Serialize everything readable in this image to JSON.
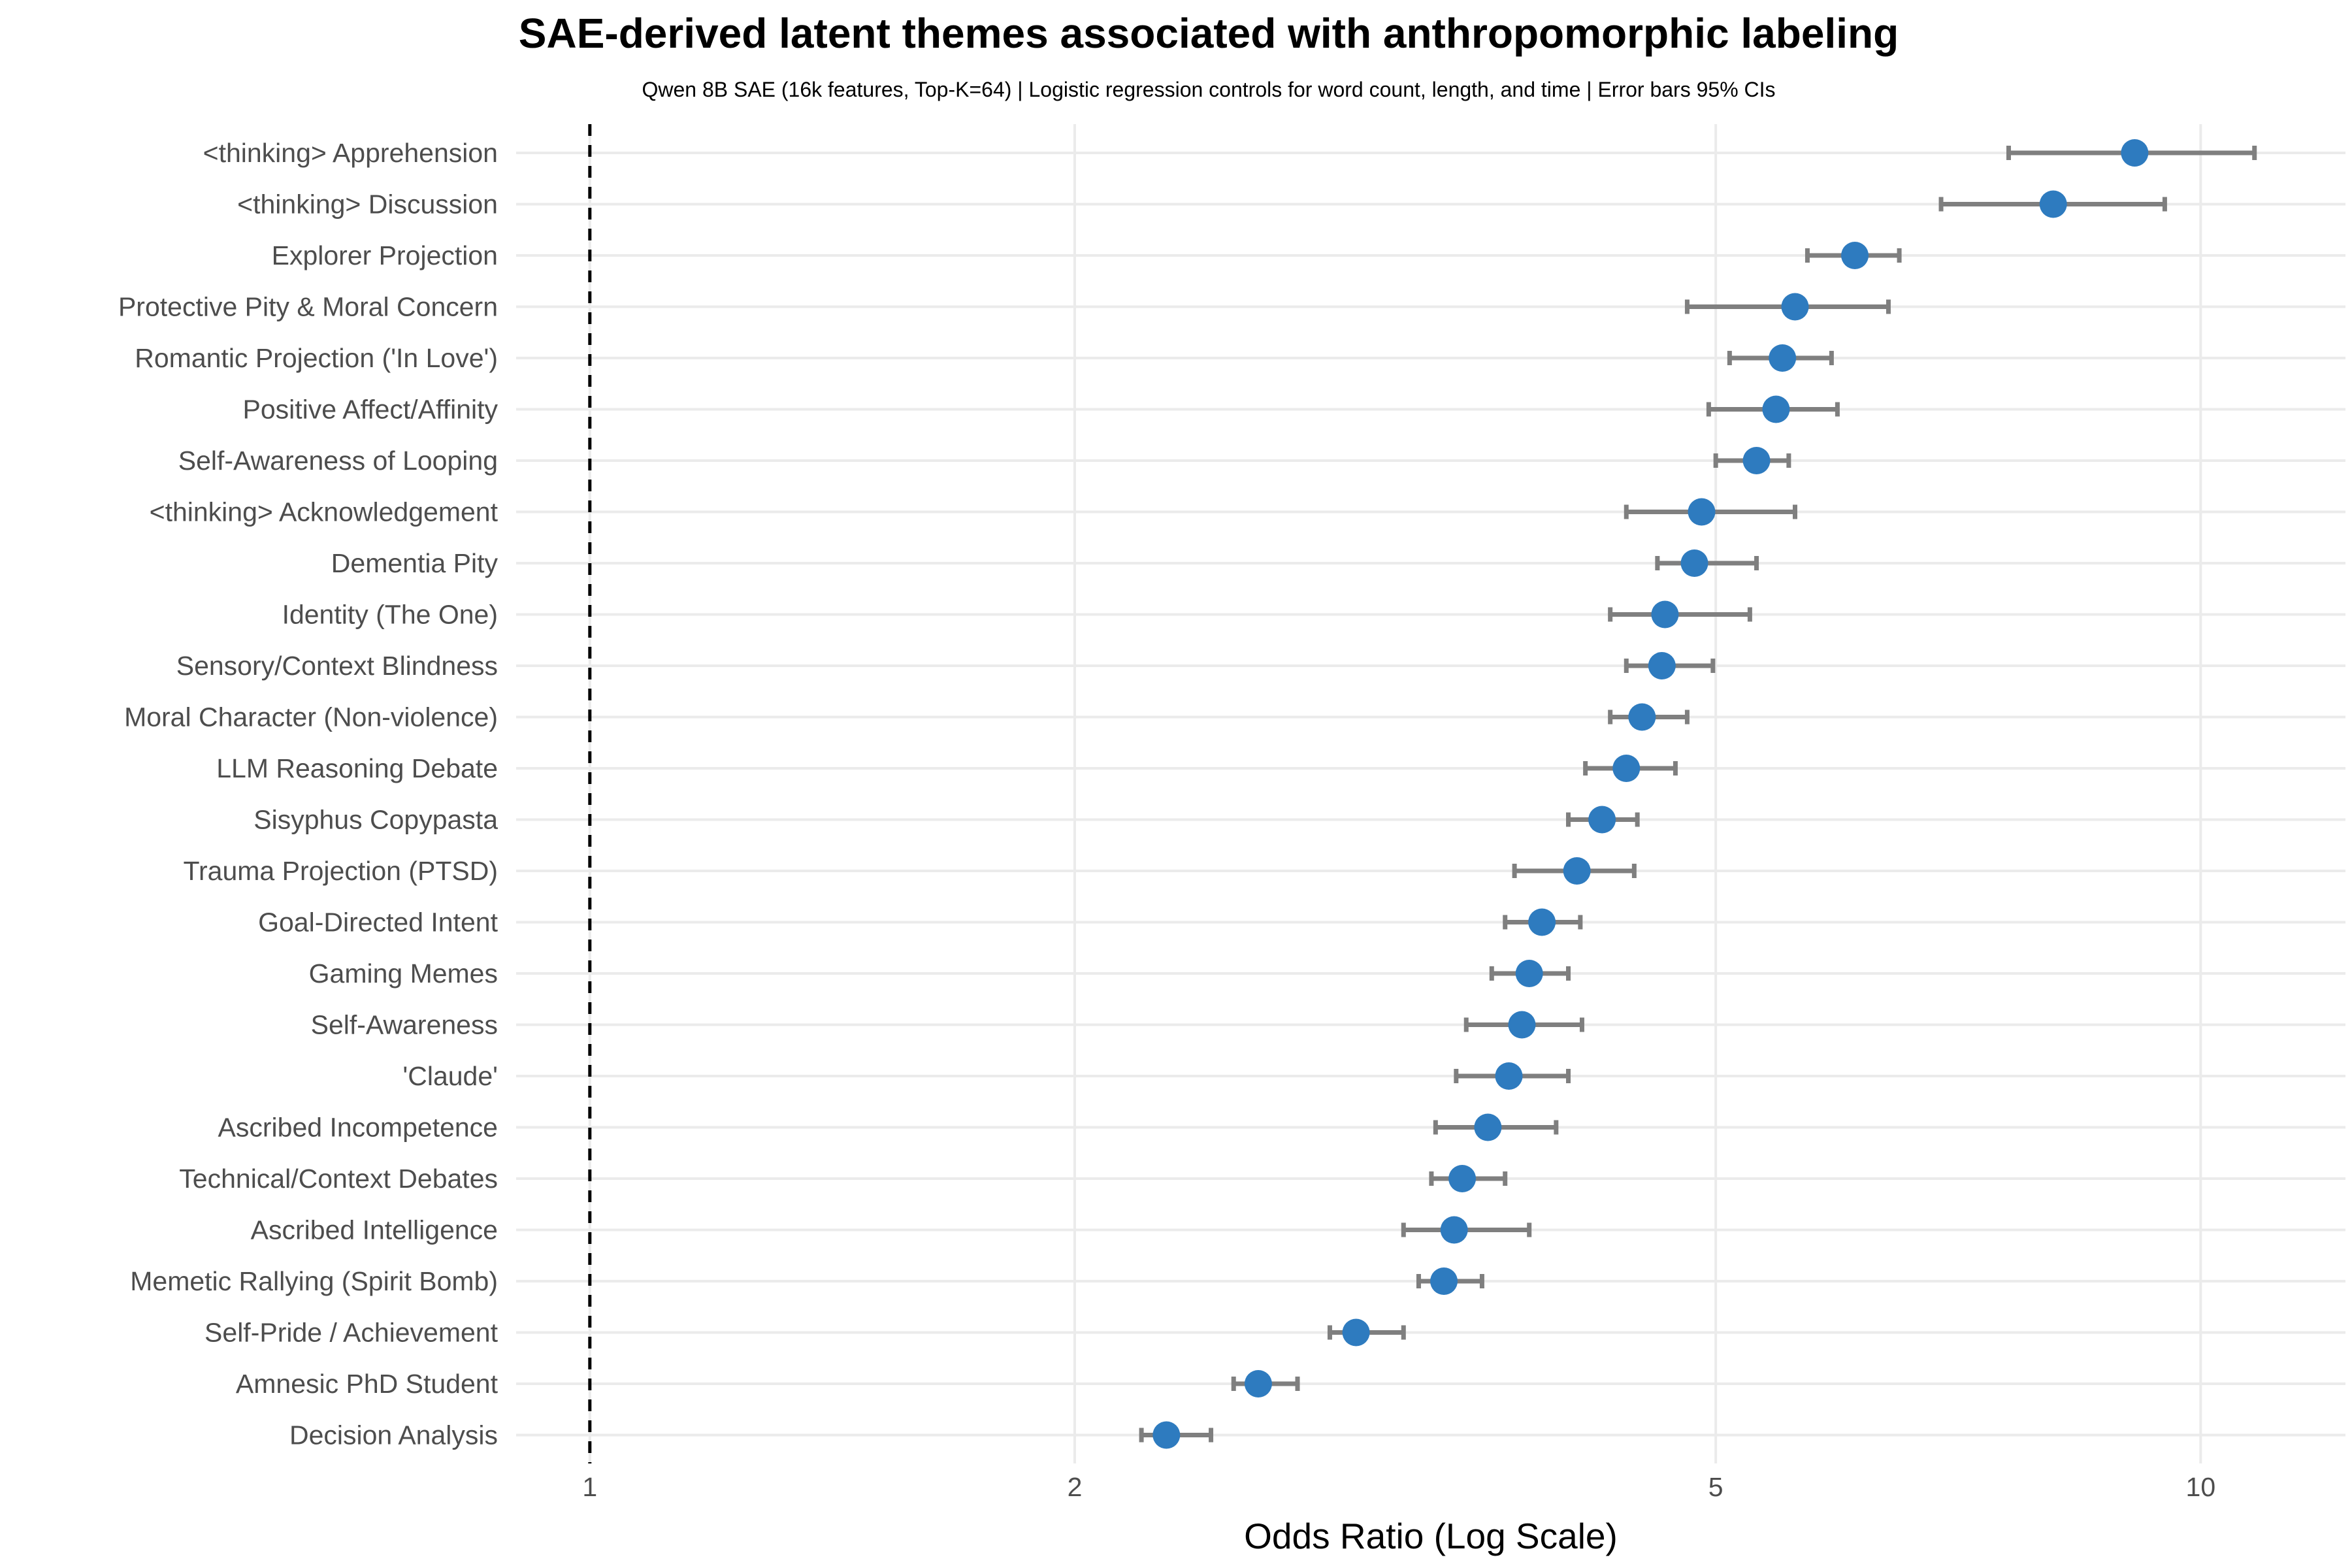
{
  "chart_data": {
    "type": "scatter",
    "title": "SAE-derived latent themes associated with anthropomorphic labeling",
    "subtitle": "Qwen 8B SAE (16k features, Top-K=64) | Logistic regression controls for word count, length, and time | Error bars 95% CIs",
    "xlabel": "Odds Ratio (Log Scale)",
    "ylabel": "",
    "x_scale": "log",
    "xlim": [
      0.9,
      12.3
    ],
    "x_ticks": [
      1,
      2,
      5,
      10
    ],
    "x_tick_labels": [
      "1",
      "2",
      "5",
      "10"
    ],
    "reference_line": 1,
    "grid": true,
    "point_color": "#2e7bbf",
    "errorbar_color": "#7f7f7f",
    "categories": [
      "<thinking> Apprehension",
      "<thinking> Discussion",
      "Explorer Projection",
      "Protective Pity & Moral Concern",
      "Romantic Projection ('In Love')",
      "Positive Affect/Affinity",
      "Self-Awareness of Looping",
      "<thinking> Acknowledgement",
      "Dementia Pity",
      "Identity (The One)",
      "Sensory/Context Blindness",
      "Moral Character (Non-violence)",
      "LLM Reasoning Debate",
      "Sisyphus Copypasta",
      "Trauma Projection (PTSD)",
      "Goal-Directed Intent",
      "Gaming Memes",
      "Self-Awareness",
      "'Claude'",
      "Ascribed Incompetence",
      "Technical/Context Debates",
      "Ascribed Intelligence",
      "Memetic Rallying (Spirit Bomb)",
      "Self-Pride / Achievement",
      "Amnesic PhD Student",
      "Decision Analysis"
    ],
    "values": [
      9.1,
      8.1,
      6.1,
      5.6,
      5.5,
      5.45,
      5.3,
      4.9,
      4.85,
      4.65,
      4.63,
      4.5,
      4.4,
      4.25,
      4.1,
      3.9,
      3.83,
      3.79,
      3.72,
      3.61,
      3.48,
      3.44,
      3.39,
      2.99,
      2.6,
      2.28
    ],
    "ci_low": [
      7.6,
      6.9,
      5.7,
      4.8,
      5.1,
      4.95,
      5.0,
      4.4,
      4.6,
      4.3,
      4.4,
      4.3,
      4.15,
      4.05,
      3.75,
      3.7,
      3.63,
      3.5,
      3.45,
      3.35,
      3.33,
      3.2,
      3.27,
      2.88,
      2.51,
      2.2
    ],
    "ci_high": [
      10.8,
      9.5,
      6.5,
      6.4,
      5.9,
      5.95,
      5.55,
      5.6,
      5.3,
      5.25,
      4.98,
      4.8,
      4.72,
      4.47,
      4.45,
      4.12,
      4.05,
      4.13,
      4.05,
      3.98,
      3.7,
      3.83,
      3.58,
      3.2,
      2.75,
      2.43
    ]
  }
}
